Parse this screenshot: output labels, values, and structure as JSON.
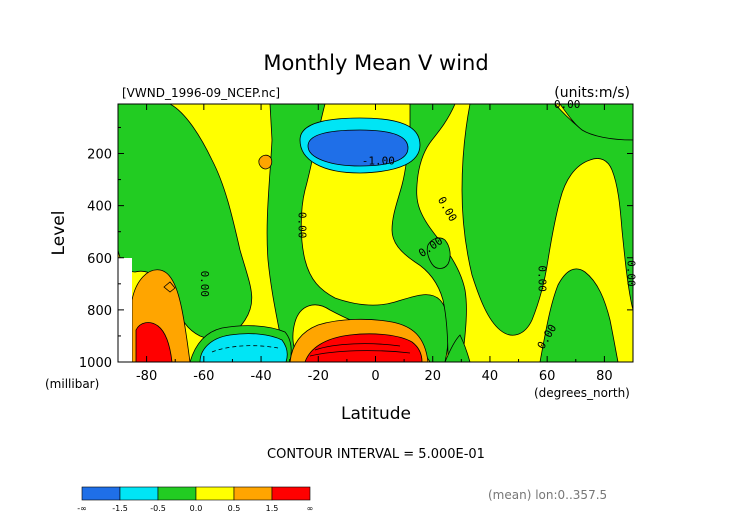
{
  "chart_data": {
    "type": "heatmap",
    "title": "Monthly Mean V wind",
    "file_label": "[VWND_1996-09_NCEP.nc]",
    "units_label": "(units:m/s)",
    "xlabel": "Latitude",
    "x_units": "(degrees_north)",
    "ylabel": "Level",
    "y_units": "(millibar)",
    "xlim": [
      -90,
      90
    ],
    "ylim": [
      1000,
      10
    ],
    "x_ticks": [
      "-80",
      "-60",
      "-40",
      "-20",
      "0",
      "20",
      "40",
      "60",
      "80"
    ],
    "x_tick_values": [
      -80,
      -60,
      -40,
      -20,
      0,
      20,
      40,
      60,
      80
    ],
    "y_ticks": [
      "200",
      "400",
      "600",
      "800",
      "1000"
    ],
    "y_tick_values": [
      200,
      400,
      600,
      800,
      1000
    ],
    "contour_interval": "CONTOUR INTERVAL = 5.000E-01",
    "footer": "(mean) lon:0..357.5",
    "contour_labels": [
      {
        "text": "0.00",
        "x": 67,
        "y": 25,
        "angle": 0
      },
      {
        "text": "-1.00",
        "x": 1,
        "y": 242,
        "angle": 0
      },
      {
        "text": "0.00",
        "x": -27,
        "y": 475,
        "angle": 90
      },
      {
        "text": "0.00",
        "x": 20,
        "y": 570,
        "angle": -35
      },
      {
        "text": "0.00",
        "x": 24,
        "y": 420,
        "angle": 60
      },
      {
        "text": "0.00",
        "x": -61,
        "y": 700,
        "angle": 90
      },
      {
        "text": "0.00",
        "x": 57,
        "y": 680,
        "angle": 90
      },
      {
        "text": "0.00",
        "x": 61,
        "y": 910,
        "angle": -60
      },
      {
        "text": "0.00",
        "x": 88,
        "y": 660,
        "angle": 90
      }
    ],
    "colorbar": {
      "colors": [
        "#1f6fe8",
        "#00e5f5",
        "#22cc22",
        "#ffff00",
        "#ffa500",
        "#ff0000"
      ],
      "labels": [
        "-∞",
        "-1.5",
        "-0.5",
        "0.0",
        "0.5",
        "1.5",
        "∞"
      ]
    }
  }
}
